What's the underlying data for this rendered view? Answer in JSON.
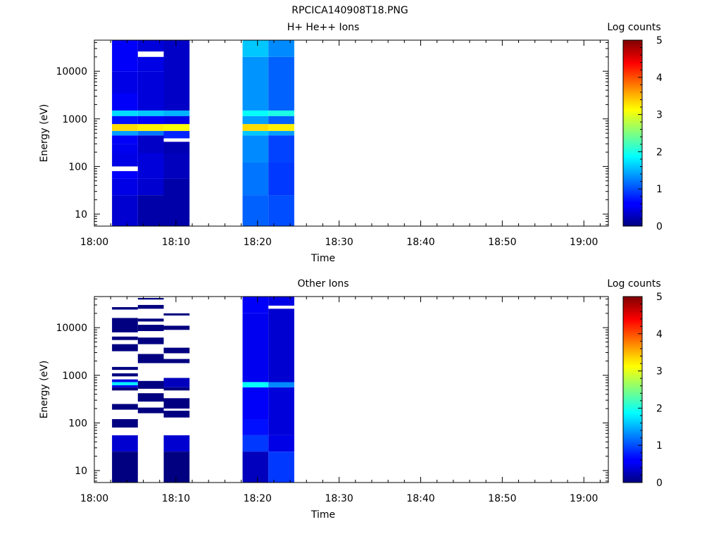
{
  "page": {
    "title": "RPCICA140908T18.PNG"
  },
  "chart_data": [
    {
      "type": "heatmap",
      "title": "H+ He++ Ions",
      "xlabel": "Time",
      "ylabel": "Energy (eV)",
      "yscale": "log",
      "ylim": [
        5.6,
        45000
      ],
      "xlim": [
        "18:00",
        "19:03"
      ],
      "x_ticks": [
        "18:00",
        "18:10",
        "18:20",
        "18:30",
        "18:40",
        "18:50",
        "19:00"
      ],
      "y_ticks": [
        "10",
        "100",
        "1000",
        "10000"
      ],
      "colorbar": {
        "label": "Log counts",
        "range": [
          0,
          5
        ],
        "ticks": [
          "0",
          "1",
          "2",
          "3",
          "4",
          "5"
        ]
      },
      "columns": [
        {
          "t_start": "18:02:10",
          "t_end": "18:05:20",
          "bins": [
            {
              "e": [
                5.6,
                25
              ],
              "v": 0.4
            },
            {
              "e": [
                25,
                55
              ],
              "v": 0.5
            },
            {
              "e": [
                55,
                80
              ],
              "v": 0.6
            },
            {
              "e": [
                80,
                100
              ],
              "v": null
            },
            {
              "e": [
                100,
                190
              ],
              "v": 0.5
            },
            {
              "e": [
                190,
                300
              ],
              "v": 0.55
            },
            {
              "e": [
                300,
                450
              ],
              "v": 0.6
            },
            {
              "e": [
                450,
                560
              ],
              "v": 1.4
            },
            {
              "e": [
                560,
                780
              ],
              "v": 3.3
            },
            {
              "e": [
                780,
                1150
              ],
              "v": 0.7
            },
            {
              "e": [
                1150,
                1500
              ],
              "v": 1.7
            },
            {
              "e": [
                1500,
                3500
              ],
              "v": 0.6
            },
            {
              "e": [
                3500,
                10000
              ],
              "v": 0.5
            },
            {
              "e": [
                10000,
                45000
              ],
              "v": 0.6
            }
          ]
        },
        {
          "t_start": "18:05:20",
          "t_end": "18:08:30",
          "bins": [
            {
              "e": [
                5.6,
                25
              ],
              "v": 0.2
            },
            {
              "e": [
                25,
                55
              ],
              "v": 0.4
            },
            {
              "e": [
                55,
                190
              ],
              "v": 0.45
            },
            {
              "e": [
                190,
                450
              ],
              "v": 0.35
            },
            {
              "e": [
                450,
                560
              ],
              "v": 1.2
            },
            {
              "e": [
                560,
                780
              ],
              "v": 3.2
            },
            {
              "e": [
                780,
                1150
              ],
              "v": 0.6
            },
            {
              "e": [
                1150,
                1500
              ],
              "v": 1.6
            },
            {
              "e": [
                1500,
                10000
              ],
              "v": 0.45
            },
            {
              "e": [
                10000,
                20000
              ],
              "v": 0.5
            },
            {
              "e": [
                20000,
                26000
              ],
              "v": null
            },
            {
              "e": [
                26000,
                45000
              ],
              "v": 0.45
            }
          ]
        },
        {
          "t_start": "18:08:30",
          "t_end": "18:11:40",
          "bins": [
            {
              "e": [
                5.6,
                55
              ],
              "v": 0.2
            },
            {
              "e": [
                55,
                190
              ],
              "v": 0.3
            },
            {
              "e": [
                190,
                330
              ],
              "v": 0.25
            },
            {
              "e": [
                330,
                390
              ],
              "v": null
            },
            {
              "e": [
                390,
                560
              ],
              "v": 0.8
            },
            {
              "e": [
                560,
                780
              ],
              "v": 3.1
            },
            {
              "e": [
                780,
                1150
              ],
              "v": 0.5
            },
            {
              "e": [
                1150,
                1500
              ],
              "v": 1.5
            },
            {
              "e": [
                1500,
                45000
              ],
              "v": 0.35
            }
          ]
        },
        {
          "t_start": "18:18:10",
          "t_end": "18:21:20",
          "bins": [
            {
              "e": [
                5.6,
                25
              ],
              "v": 1.1
            },
            {
              "e": [
                25,
                120
              ],
              "v": 1.2
            },
            {
              "e": [
                120,
                450
              ],
              "v": 1.3
            },
            {
              "e": [
                450,
                560
              ],
              "v": 1.6
            },
            {
              "e": [
                560,
                780
              ],
              "v": 3.3
            },
            {
              "e": [
                780,
                1150
              ],
              "v": 1.4
            },
            {
              "e": [
                1150,
                1500
              ],
              "v": 1.9
            },
            {
              "e": [
                1500,
                20000
              ],
              "v": 1.35
            },
            {
              "e": [
                20000,
                45000
              ],
              "v": 1.6
            }
          ]
        },
        {
          "t_start": "18:21:20",
          "t_end": "18:24:30",
          "bins": [
            {
              "e": [
                5.6,
                25
              ],
              "v": 1.0
            },
            {
              "e": [
                25,
                120
              ],
              "v": 0.9
            },
            {
              "e": [
                120,
                450
              ],
              "v": 0.95
            },
            {
              "e": [
                450,
                560
              ],
              "v": 1.4
            },
            {
              "e": [
                560,
                780
              ],
              "v": 3.2
            },
            {
              "e": [
                780,
                1150
              ],
              "v": 1.1
            },
            {
              "e": [
                1150,
                1500
              ],
              "v": 2.0
            },
            {
              "e": [
                1500,
                20000
              ],
              "v": 1.1
            },
            {
              "e": [
                20000,
                45000
              ],
              "v": 1.3
            }
          ]
        }
      ]
    },
    {
      "type": "heatmap",
      "title": "Other Ions",
      "xlabel": "Time",
      "ylabel": "Energy (eV)",
      "yscale": "log",
      "ylim": [
        5.6,
        45000
      ],
      "xlim": [
        "18:00",
        "19:03"
      ],
      "x_ticks": [
        "18:00",
        "18:10",
        "18:20",
        "18:30",
        "18:40",
        "18:50",
        "19:00"
      ],
      "y_ticks": [
        "10",
        "100",
        "1000",
        "10000"
      ],
      "colorbar": {
        "label": "Log counts",
        "range": [
          0,
          5
        ],
        "ticks": [
          "0",
          "1",
          "2",
          "3",
          "4",
          "5"
        ]
      },
      "columns": [
        {
          "t_start": "18:02:10",
          "t_end": "18:05:20",
          "bins": [
            {
              "e": [
                5.6,
                25
              ],
              "v": 0.0
            },
            {
              "e": [
                25,
                55
              ],
              "v": 0.4
            },
            {
              "e": [
                80,
                120
              ],
              "v": 0.0
            },
            {
              "e": [
                190,
                250
              ],
              "v": 0.0
            },
            {
              "e": [
                480,
                560
              ],
              "v": 0.0
            },
            {
              "e": [
                560,
                620
              ],
              "v": 0.5
            },
            {
              "e": [
                620,
                720
              ],
              "v": 1.8
            },
            {
              "e": [
                720,
                820
              ],
              "v": 0.5
            },
            {
              "e": [
                950,
                1100
              ],
              "v": 0.0
            },
            {
              "e": [
                1300,
                1500
              ],
              "v": 0.0
            },
            {
              "e": [
                3200,
                4500
              ],
              "v": 0.0
            },
            {
              "e": [
                5500,
                6500
              ],
              "v": 0.0
            },
            {
              "e": [
                8000,
                16000
              ],
              "v": 0.0
            },
            {
              "e": [
                24000,
                27000
              ],
              "v": 0.0
            }
          ]
        },
        {
          "t_start": "18:05:20",
          "t_end": "18:08:30",
          "bins": [
            {
              "e": [
                160,
                210
              ],
              "v": 0.0
            },
            {
              "e": [
                280,
                420
              ],
              "v": 0.0
            },
            {
              "e": [
                520,
                760
              ],
              "v": 0.0
            },
            {
              "e": [
                1800,
                2800
              ],
              "v": 0.0
            },
            {
              "e": [
                4500,
                6200
              ],
              "v": 0.0
            },
            {
              "e": [
                8500,
                11500
              ],
              "v": 0.0
            },
            {
              "e": [
                13500,
                15500
              ],
              "v": 0.0
            },
            {
              "e": [
                25000,
                30000
              ],
              "v": 0.0
            },
            {
              "e": [
                39000,
                42000
              ],
              "v": 0.0
            }
          ]
        },
        {
          "t_start": "18:08:30",
          "t_end": "18:11:40",
          "bins": [
            {
              "e": [
                5.6,
                25
              ],
              "v": 0.0
            },
            {
              "e": [
                25,
                55
              ],
              "v": 0.4
            },
            {
              "e": [
                130,
                180
              ],
              "v": 0.0
            },
            {
              "e": [
                200,
                330
              ],
              "v": 0.0
            },
            {
              "e": [
                480,
                560
              ],
              "v": 0.0
            },
            {
              "e": [
                560,
                880
              ],
              "v": 0.3
            },
            {
              "e": [
                1800,
                2200
              ],
              "v": 0.0
            },
            {
              "e": [
                2900,
                3800
              ],
              "v": 0.0
            },
            {
              "e": [
                9000,
                11000
              ],
              "v": 0.0
            },
            {
              "e": [
                18000,
                20000
              ],
              "v": 0.0
            }
          ]
        },
        {
          "t_start": "18:18:10",
          "t_end": "18:21:20",
          "bins": [
            {
              "e": [
                5.6,
                25
              ],
              "v": 0.3
            },
            {
              "e": [
                25,
                55
              ],
              "v": 0.9
            },
            {
              "e": [
                55,
                120
              ],
              "v": 0.7
            },
            {
              "e": [
                120,
                560
              ],
              "v": 0.6
            },
            {
              "e": [
                560,
                720
              ],
              "v": 1.9
            },
            {
              "e": [
                720,
                20000
              ],
              "v": 0.55
            },
            {
              "e": [
                20000,
                45000
              ],
              "v": 0.6
            }
          ]
        },
        {
          "t_start": "18:21:20",
          "t_end": "18:24:30",
          "bins": [
            {
              "e": [
                5.6,
                25
              ],
              "v": 0.9
            },
            {
              "e": [
                25,
                55
              ],
              "v": 0.5
            },
            {
              "e": [
                55,
                560
              ],
              "v": 0.45
            },
            {
              "e": [
                560,
                720
              ],
              "v": 1.3
            },
            {
              "e": [
                720,
                25000
              ],
              "v": 0.4
            },
            {
              "e": [
                25000,
                29000
              ],
              "v": null
            },
            {
              "e": [
                29000,
                45000
              ],
              "v": 0.5
            }
          ]
        }
      ]
    }
  ]
}
